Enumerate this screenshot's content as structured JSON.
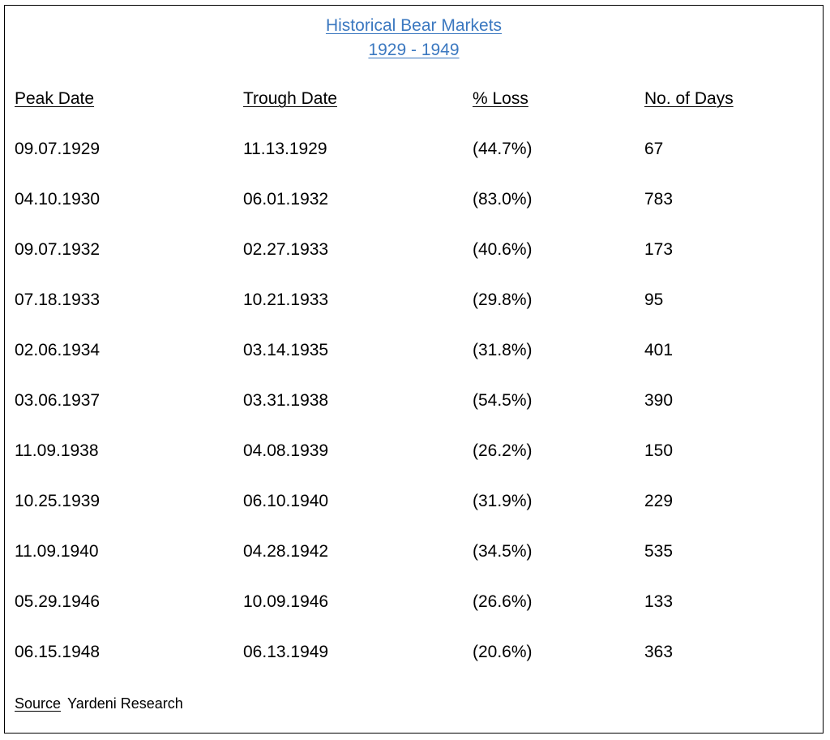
{
  "title": {
    "line1": "Historical Bear Markets",
    "line2": "1929 - 1949",
    "color": "#3b78c0"
  },
  "table": {
    "columns": [
      "Peak Date",
      "Trough Date",
      "% Loss",
      "No. of Days"
    ],
    "rows": [
      [
        "09.07.1929",
        "11.13.1929",
        "(44.7%)",
        "67"
      ],
      [
        "04.10.1930",
        "06.01.1932",
        "(83.0%)",
        "783"
      ],
      [
        "09.07.1932",
        "02.27.1933",
        "(40.6%)",
        "173"
      ],
      [
        "07.18.1933",
        "10.21.1933",
        "(29.8%)",
        "95"
      ],
      [
        "02.06.1934",
        "03.14.1935",
        "(31.8%)",
        "401"
      ],
      [
        "03.06.1937",
        "03.31.1938",
        "(54.5%)",
        "390"
      ],
      [
        "11.09.1938",
        "04.08.1939",
        "(26.2%)",
        "150"
      ],
      [
        "10.25.1939",
        "06.10.1940",
        "(31.9%)",
        "229"
      ],
      [
        "11.09.1940",
        "04.28.1942",
        "(34.5%)",
        "535"
      ],
      [
        "05.29.1946",
        "10.09.1946",
        "(26.6%)",
        "133"
      ],
      [
        "06.15.1948",
        "06.13.1949",
        "(20.6%)",
        "363"
      ]
    ]
  },
  "source": {
    "label": "Source",
    "text": "Yardeni Research"
  }
}
